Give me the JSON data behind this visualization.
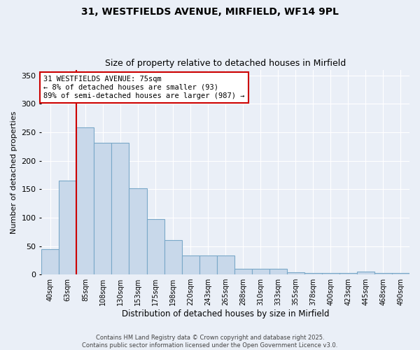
{
  "title_line1": "31, WESTFIELDS AVENUE, MIRFIELD, WF14 9PL",
  "title_line2": "Size of property relative to detached houses in Mirfield",
  "xlabel": "Distribution of detached houses by size in Mirfield",
  "ylabel": "Number of detached properties",
  "bar_labels": [
    "40sqm",
    "63sqm",
    "85sqm",
    "108sqm",
    "130sqm",
    "153sqm",
    "175sqm",
    "198sqm",
    "220sqm",
    "243sqm",
    "265sqm",
    "288sqm",
    "310sqm",
    "333sqm",
    "355sqm",
    "378sqm",
    "400sqm",
    "423sqm",
    "445sqm",
    "468sqm",
    "490sqm"
  ],
  "bar_heights": [
    45,
    165,
    258,
    232,
    232,
    152,
    97,
    60,
    33,
    33,
    33,
    10,
    10,
    10,
    4,
    3,
    3,
    3,
    5,
    3,
    3
  ],
  "bar_color": "#c8d8ea",
  "bar_edgecolor": "#7aa8c8",
  "ylim": [
    0,
    360
  ],
  "yticks": [
    0,
    50,
    100,
    150,
    200,
    250,
    300,
    350
  ],
  "red_line_x": 1.5,
  "annotation_text": "31 WESTFIELDS AVENUE: 75sqm\n← 8% of detached houses are smaller (93)\n89% of semi-detached houses are larger (987) →",
  "annotation_box_color": "#ffffff",
  "annotation_box_edgecolor": "#cc0000",
  "annotation_fontsize": 7.5,
  "title_fontsize1": 10,
  "title_fontsize2": 9,
  "footer_line1": "Contains HM Land Registry data © Crown copyright and database right 2025.",
  "footer_line2": "Contains public sector information licensed under the Open Government Licence v3.0.",
  "background_color": "#eaeff7",
  "grid_color": "#ffffff"
}
